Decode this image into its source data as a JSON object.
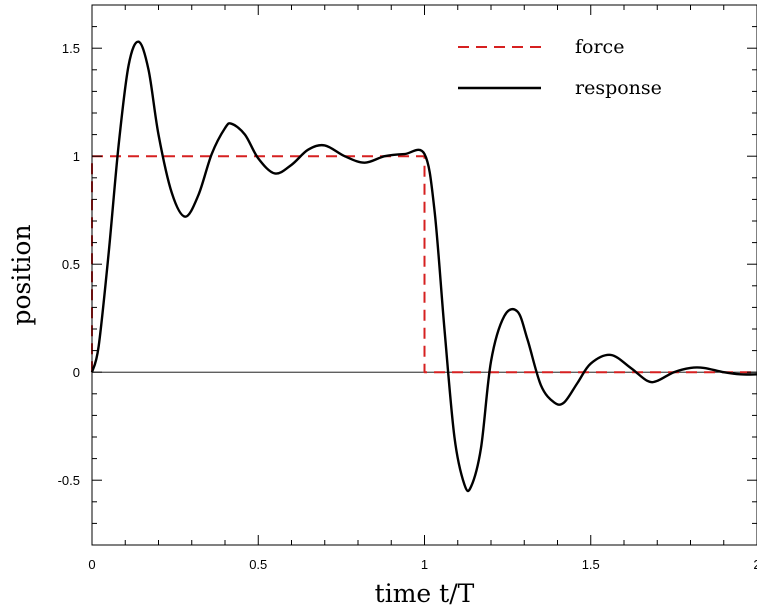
{
  "chart_data": {
    "type": "line",
    "title": "",
    "xlabel": "time  t/T",
    "ylabel": "position",
    "xlim": [
      0,
      2
    ],
    "ylim": [
      -0.8,
      1.7
    ],
    "grid": false,
    "legend_position": "top-right",
    "x_ticks": [
      {
        "value": 0,
        "label": "0"
      },
      {
        "value": 0.5,
        "label": "0.5"
      },
      {
        "value": 1,
        "label": "1"
      },
      {
        "value": 1.5,
        "label": "1.5"
      },
      {
        "value": 2,
        "label": "2"
      }
    ],
    "y_ticks": [
      {
        "value": -0.5,
        "label": "-0.5"
      },
      {
        "value": 0,
        "label": "0"
      },
      {
        "value": 0.5,
        "label": "0.5"
      },
      {
        "value": 1,
        "label": "1"
      },
      {
        "value": 1.5,
        "label": "1.5"
      }
    ],
    "series": [
      {
        "name": "force",
        "color": "#d62020",
        "style": "dashed",
        "x": [
          0,
          0,
          1,
          1,
          2
        ],
        "y": [
          0,
          1,
          1,
          0,
          0
        ]
      },
      {
        "name": "response",
        "color": "#000000",
        "style": "solid",
        "x": [
          0,
          0.02,
          0.05,
          0.08,
          0.11,
          0.14,
          0.17,
          0.2,
          0.24,
          0.28,
          0.32,
          0.36,
          0.4,
          0.42,
          0.46,
          0.5,
          0.55,
          0.6,
          0.65,
          0.7,
          0.76,
          0.82,
          0.88,
          0.94,
          1.0,
          1.03,
          1.06,
          1.09,
          1.12,
          1.14,
          1.17,
          1.2,
          1.24,
          1.28,
          1.31,
          1.35,
          1.39,
          1.42,
          1.46,
          1.5,
          1.56,
          1.62,
          1.67,
          1.7,
          1.75,
          1.8,
          1.84,
          1.9,
          1.95,
          2.0
        ],
        "y": [
          0,
          0.12,
          0.55,
          1.05,
          1.42,
          1.53,
          1.4,
          1.1,
          0.83,
          0.72,
          0.82,
          1.01,
          1.13,
          1.15,
          1.1,
          0.99,
          0.92,
          0.96,
          1.03,
          1.05,
          1.0,
          0.97,
          1.0,
          1.01,
          1.01,
          0.75,
          0.2,
          -0.3,
          -0.52,
          -0.53,
          -0.35,
          0.05,
          0.26,
          0.28,
          0.15,
          -0.06,
          -0.14,
          -0.14,
          -0.05,
          0.04,
          0.08,
          0.02,
          -0.04,
          -0.04,
          0.0,
          0.02,
          0.02,
          0.0,
          -0.01,
          -0.01
        ]
      }
    ]
  }
}
